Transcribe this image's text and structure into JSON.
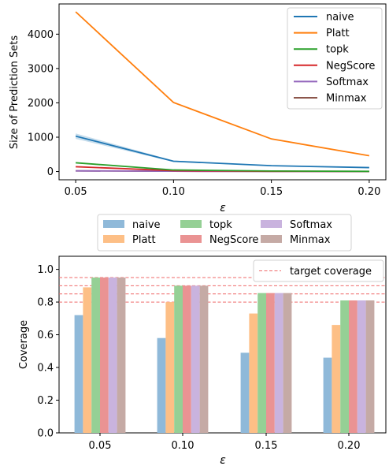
{
  "chart_data": [
    {
      "type": "line",
      "xlabel": "ε",
      "ylabel": "Size of Prediction Sets",
      "x": [
        0.05,
        0.1,
        0.15,
        0.2
      ],
      "xticks": [
        "0.05",
        "0.10",
        "0.15",
        "0.20"
      ],
      "xlim": [
        0.0415,
        0.2085
      ],
      "ylim": [
        -240,
        4880
      ],
      "yticks": [
        0,
        1000,
        2000,
        3000,
        4000
      ],
      "ytick_labels": [
        "0",
        "1000",
        "2000",
        "3000",
        "4000"
      ],
      "grid": false,
      "legend_position": "top-right",
      "series": [
        {
          "name": "naive",
          "color": "#1f77b4",
          "values": [
            1030,
            300,
            170,
            115
          ],
          "band": [
            80,
            20,
            10,
            8
          ]
        },
        {
          "name": "Platt",
          "color": "#ff7f0e",
          "values": [
            4650,
            2010,
            950,
            460
          ]
        },
        {
          "name": "topk",
          "color": "#2ca02c",
          "values": [
            255,
            45,
            15,
            5
          ]
        },
        {
          "name": "NegScore",
          "color": "#d62728",
          "values": [
            140,
            25,
            8,
            4
          ]
        },
        {
          "name": "Softmax",
          "color": "#9467bd",
          "values": [
            20,
            10,
            5,
            3
          ]
        },
        {
          "name": "Minmax",
          "color": "#8c564b",
          "values": [
            20,
            10,
            5,
            3
          ]
        }
      ]
    },
    {
      "type": "bar",
      "xlabel": "ε",
      "ylabel": "Coverage",
      "categories": [
        "0.05",
        "0.10",
        "0.15",
        "0.20"
      ],
      "ylim": [
        0.0,
        1.08
      ],
      "yticks": [
        0.0,
        0.2,
        0.4,
        0.6,
        0.8,
        1.0
      ],
      "ytick_labels": [
        "0.0",
        "0.2",
        "0.4",
        "0.6",
        "0.8",
        "1.0"
      ],
      "grid": false,
      "series": [
        {
          "name": "naive",
          "color": "#8fb9d9",
          "values": [
            0.72,
            0.58,
            0.49,
            0.46
          ]
        },
        {
          "name": "Platt",
          "color": "#fdbf86",
          "values": [
            0.89,
            0.8,
            0.73,
            0.66
          ]
        },
        {
          "name": "topk",
          "color": "#95d095",
          "values": [
            0.95,
            0.9,
            0.855,
            0.81
          ]
        },
        {
          "name": "NegScore",
          "color": "#ea9393",
          "values": [
            0.95,
            0.9,
            0.855,
            0.81
          ]
        },
        {
          "name": "Softmax",
          "color": "#c9b3de",
          "values": [
            0.95,
            0.9,
            0.855,
            0.81
          ]
        },
        {
          "name": "Minmax",
          "color": "#c5aaa5",
          "values": [
            0.95,
            0.9,
            0.855,
            0.81
          ]
        }
      ],
      "reference_lines": {
        "name": "target coverage",
        "color": "#ef6a6a",
        "values": [
          0.95,
          0.9,
          0.85,
          0.8
        ]
      },
      "legend_position": "top-right"
    }
  ]
}
